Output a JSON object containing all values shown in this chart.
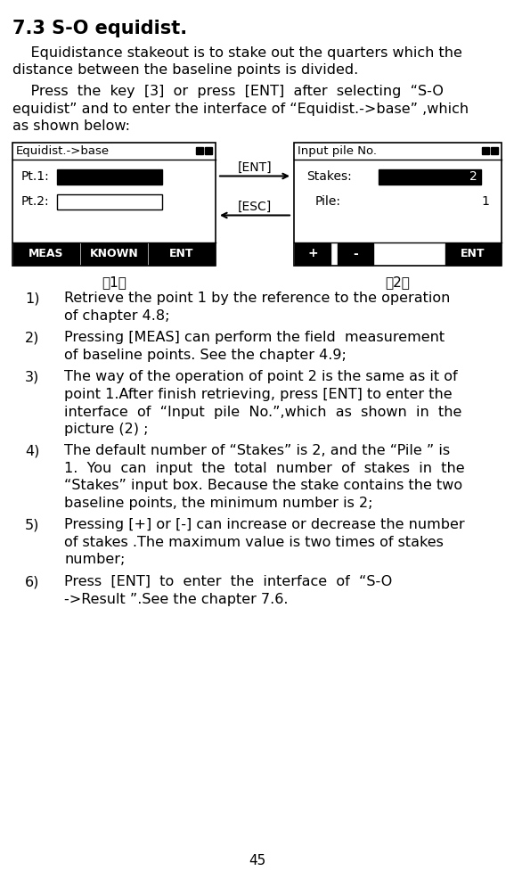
{
  "title": "7.3 S-O equidist.",
  "para1_line1": "    Equidistance stakeout is to stake out the quarters which the",
  "para1_line2": "distance between the baseline points is divided.",
  "para2_line1": "    Press  the  key  [3]  or  press  [ENT]  after  selecting  “S-O",
  "para2_line2": "equidist” and to enter the interface of “Equidist.->base” ,which",
  "para2_line3": "as shown below:",
  "screen1_title": "Equidist.->base",
  "screen1_buttons": [
    "MEAS",
    "KNOWN",
    "ENT"
  ],
  "screen2_title": "Input pile No.",
  "screen2_buttons": [
    "+",
    "-",
    "ENT"
  ],
  "arrow_ent_label": "[ENT]",
  "arrow_esc_label": "[ESC]",
  "caption1": "（1）",
  "caption2": "（2）",
  "list_items": [
    [
      "Retrieve the point 1 by the reference to the operation",
      "of chapter 4.8;"
    ],
    [
      "Pressing [MEAS] can perform the field  measurement",
      "of baseline points. See the chapter 4.9;"
    ],
    [
      "The way of the operation of point 2 is the same as it of",
      "point 1.After finish retrieving, press [ENT] to enter the",
      "interface  of  “Input  pile  No.”,which  as  shown  in  the",
      "picture (2) ;"
    ],
    [
      "The default number of “Stakes” is 2, and the “Pile ” is",
      "1.  You  can  input  the  total  number  of  stakes  in  the",
      "“Stakes” input box. Because the stake contains the two",
      "baseline points, the minimum number is 2;"
    ],
    [
      "Pressing [+] or [-] can increase or decrease the number",
      "of stakes .The maximum value is two times of stakes",
      "number;"
    ],
    [
      "Press  [ENT]  to  enter  the  interface  of  “S-O",
      "->Result ”.See the chapter 7.6."
    ]
  ],
  "page_number": "45",
  "bg_color": "#ffffff",
  "text_color": "#000000"
}
